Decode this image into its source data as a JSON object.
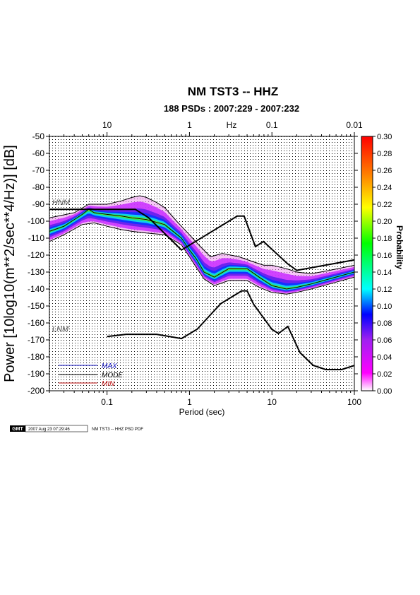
{
  "title": "NM TST3 -- HHZ",
  "subtitle": "188 PSDs : 2007:229 - 2007:232",
  "footer": {
    "gmt_logo": "GMT",
    "timestamp": "2007 Aug 23 07:29:46",
    "caption": "NM TST3 -- HHZ PSD PDF"
  },
  "colors": {
    "high_noise_model": "#555555",
    "low_noise_model": "#555555",
    "max_legend": "#1010c0",
    "mode_legend": "#000000",
    "min_legend": "#c01010"
  },
  "chart_data": {
    "type": "heatmap",
    "title": "NM TST3 -- HHZ",
    "subtitle": "188 PSDs : 2007:229 - 2007:232",
    "xlabel": "Period (sec)",
    "x2label": "Hz",
    "ylabel": "Power [10log10(m**2/sec**4/Hz)] [dB]",
    "xscale": "log",
    "xlim": [
      0.02,
      100
    ],
    "ylim": [
      -200,
      -50
    ],
    "grid": true,
    "xticks": [
      0.1,
      1,
      10,
      100
    ],
    "xtick_labels": [
      "0.1",
      "1",
      "10",
      "100"
    ],
    "x2ticks_period": [
      0.1,
      1,
      10,
      100
    ],
    "x2tick_labels": [
      "10",
      "1",
      "0.1",
      "0.01"
    ],
    "yticks": [
      -50,
      -60,
      -70,
      -80,
      -90,
      -100,
      -110,
      -120,
      -130,
      -140,
      -150,
      -160,
      -170,
      -180,
      -190,
      -200
    ],
    "ytick_labels": [
      "-50",
      "-60",
      "-70",
      "-80",
      "-90",
      "-100",
      "-110",
      "-120",
      "-130",
      "-140",
      "-150",
      "-160",
      "-170",
      "-180",
      "-190",
      "-200"
    ],
    "colorbar": {
      "label": "Probability",
      "min": 0.0,
      "max": 0.3,
      "ticks": [
        0.0,
        0.02,
        0.04,
        0.06,
        0.08,
        0.1,
        0.12,
        0.14,
        0.16,
        0.18,
        0.2,
        0.22,
        0.24,
        0.26,
        0.28,
        0.3
      ],
      "tick_labels": [
        "0.00",
        "0.02",
        "0.04",
        "0.06",
        "0.08",
        "0.10",
        "0.12",
        "0.14",
        "0.16",
        "0.18",
        "0.20",
        "0.22",
        "0.24",
        "0.26",
        "0.28",
        "0.30"
      ],
      "colors": [
        "#ffffff",
        "#ff00ff",
        "#a020f0",
        "#0000ff",
        "#00ffff",
        "#00ff00",
        "#ffff00",
        "#ff8000",
        "#ff0000"
      ]
    },
    "legend": {
      "position": "bottom-left",
      "entries": [
        "MAX",
        "MODE",
        "MIN"
      ]
    },
    "models": [
      {
        "label": "HNM",
        "x": [
          0.02,
          0.1,
          0.22,
          0.32,
          0.8,
          3.8,
          4.6,
          6.3,
          7.9,
          15.4,
          20,
          354.8
        ],
        "y": [
          -93,
          -93,
          -93,
          -98,
          -117,
          -97,
          -97,
          -115,
          -112,
          -125,
          -129,
          -118
        ]
      },
      {
        "label": "LNM",
        "x": [
          0.1,
          0.17,
          0.4,
          0.8,
          1.24,
          2.4,
          4.3,
          5,
          6,
          10,
          12,
          15.6,
          21.9,
          31.6,
          45,
          70,
          101
        ],
        "y": [
          -168,
          -166.7,
          -166.7,
          -169.2,
          -163.7,
          -148.6,
          -141.1,
          -141.1,
          -149,
          -163.8,
          -166.2,
          -162.1,
          -177.5,
          -185,
          -187.5,
          -187.5,
          -185
        ]
      }
    ],
    "mode": {
      "x": [
        0.02,
        0.03,
        0.05,
        0.06,
        0.07,
        0.1,
        0.15,
        0.2,
        0.3,
        0.5,
        0.8,
        1.0,
        1.2,
        1.5,
        2.0,
        3.0,
        5.0,
        7.0,
        10,
        15,
        20,
        30,
        50,
        100
      ],
      "y": [
        -106,
        -103,
        -96,
        -93,
        -95,
        -96,
        -97,
        -98,
        -99,
        -102,
        -110,
        -117,
        -122,
        -130,
        -133,
        -128,
        -128,
        -133,
        -138,
        -140,
        -139,
        -137,
        -134,
        -130
      ]
    },
    "min_curve": {
      "x": [
        0.02,
        0.03,
        0.05,
        0.07,
        0.1,
        0.15,
        0.2,
        0.3,
        0.5,
        0.8,
        1.0,
        1.2,
        1.5,
        2.0,
        3.0,
        5.0,
        7.0,
        10,
        15,
        20,
        30,
        50,
        100
      ],
      "y": [
        -112,
        -108,
        -102,
        -101,
        -103,
        -105,
        -106,
        -107,
        -108,
        -114,
        -121,
        -127,
        -134,
        -138,
        -135,
        -135,
        -139,
        -142,
        -143,
        -142,
        -140,
        -137,
        -133
      ]
    },
    "max_curve": {
      "x": [
        0.02,
        0.04,
        0.06,
        0.1,
        0.15,
        0.2,
        0.25,
        0.3,
        0.4,
        0.5,
        0.7,
        1.0,
        1.3,
        1.8,
        2.5,
        4,
        6,
        8,
        10,
        15,
        20,
        30,
        50,
        100
      ],
      "y": [
        -98,
        -95,
        -90,
        -90,
        -88,
        -86,
        -85,
        -86,
        -89,
        -92,
        -100,
        -108,
        -114,
        -121,
        -119,
        -121,
        -124,
        -126,
        -126,
        -128,
        -130,
        -131,
        -129,
        -126
      ]
    }
  }
}
